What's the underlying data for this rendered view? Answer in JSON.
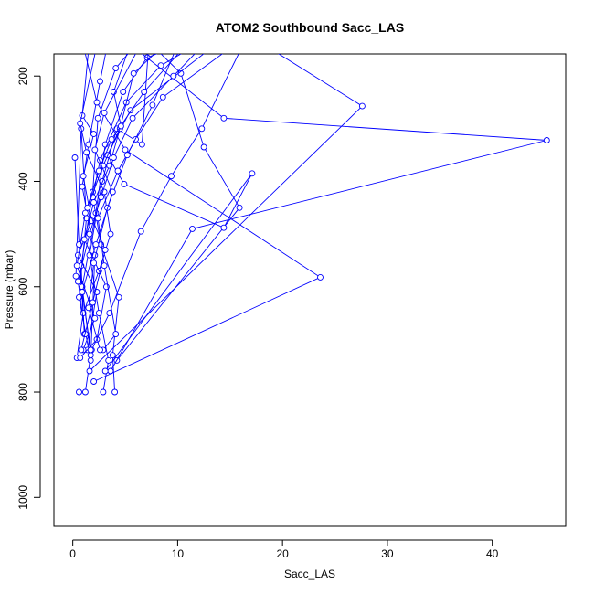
{
  "chart_data": {
    "type": "line",
    "title": "ATOM2 Southbound Sacc_LAS",
    "xlabel": "Sacc_LAS",
    "ylabel": "Pressure (mbar)",
    "xlim": [
      -1.8,
      47.0
    ],
    "ylim": [
      1055,
      158
    ],
    "y_reversed": true,
    "xticks": [
      0,
      10,
      20,
      30,
      40
    ],
    "yticks": [
      200,
      400,
      600,
      800,
      1000
    ],
    "grid": false,
    "legend": "none",
    "colors": {
      "series": "#0000ff",
      "axis": "#000000"
    },
    "series": [
      {
        "values": [
          [
            0.3,
            580
          ],
          [
            0.8,
            300
          ],
          [
            1.3,
            470
          ],
          [
            0.6,
            620
          ],
          [
            1.7,
            740
          ],
          [
            2.1,
            540
          ],
          [
            0.9,
            410
          ],
          [
            1.5,
            330
          ],
          [
            2.6,
            210
          ],
          [
            3.2,
            150
          ]
        ]
      },
      {
        "values": [
          [
            0.2,
            355
          ],
          [
            0.6,
            520
          ],
          [
            1.1,
            690
          ],
          [
            0.8,
            560
          ],
          [
            1.9,
            420
          ],
          [
            2.4,
            280
          ],
          [
            4.1,
            185
          ],
          [
            5.6,
            150
          ]
        ]
      },
      {
        "values": [
          [
            0.6,
            800
          ],
          [
            1.2,
            800
          ],
          [
            1.7,
            730
          ],
          [
            0.9,
            600
          ],
          [
            2.2,
            460
          ],
          [
            3.1,
            330
          ],
          [
            4.8,
            230
          ],
          [
            7.1,
            165
          ],
          [
            9.0,
            150
          ]
        ]
      },
      {
        "values": [
          [
            2.9,
            800
          ],
          [
            3.4,
            740
          ],
          [
            2.5,
            650
          ],
          [
            1.6,
            540
          ],
          [
            2.8,
            400
          ],
          [
            4.2,
            300
          ],
          [
            6.6,
            330
          ],
          [
            7.2,
            150
          ]
        ]
      },
      {
        "values": [
          [
            4.0,
            800
          ],
          [
            3.8,
            730
          ],
          [
            4.4,
            620
          ],
          [
            2.7,
            520
          ],
          [
            1.9,
            430
          ],
          [
            2.6,
            360
          ],
          [
            5.1,
            250
          ],
          [
            8.4,
            180
          ],
          [
            11.0,
            150
          ]
        ]
      },
      {
        "values": [
          [
            4.2,
            740
          ],
          [
            15.9,
            450
          ],
          [
            12.5,
            335
          ],
          [
            10.3,
            195
          ],
          [
            8.0,
            150
          ]
        ]
      },
      {
        "values": [
          [
            3.6,
            760
          ],
          [
            11.4,
            490
          ],
          [
            45.2,
            322
          ],
          [
            14.4,
            280
          ],
          [
            6.1,
            150
          ]
        ]
      },
      {
        "values": [
          [
            3.1,
            760
          ],
          [
            17.1,
            385
          ],
          [
            14.4,
            488
          ],
          [
            4.9,
            405
          ],
          [
            3.3,
            350
          ],
          [
            5.5,
            265
          ],
          [
            13.0,
            150
          ]
        ]
      },
      {
        "values": [
          [
            2.0,
            780
          ],
          [
            23.6,
            582
          ],
          [
            5.0,
            340
          ],
          [
            2.3,
            250
          ],
          [
            1.1,
            150
          ]
        ]
      },
      {
        "values": [
          [
            1.6,
            760
          ],
          [
            27.6,
            257
          ],
          [
            19.0,
            150
          ]
        ]
      },
      {
        "values": [
          [
            1.4,
            720
          ],
          [
            2.3,
            610
          ],
          [
            0.5,
            540
          ],
          [
            1.8,
            475
          ],
          [
            1.0,
            390
          ],
          [
            2.0,
            310
          ],
          [
            0.9,
            275
          ],
          [
            1.5,
            150
          ]
        ]
      },
      {
        "values": [
          [
            0.4,
            735
          ],
          [
            1.0,
            650
          ],
          [
            2.5,
            570
          ],
          [
            3.6,
            500
          ],
          [
            3.0,
            420
          ],
          [
            1.3,
            345
          ],
          [
            0.7,
            290
          ],
          [
            2.2,
            150
          ]
        ]
      },
      {
        "values": [
          [
            0.7,
            735
          ],
          [
            2.3,
            700
          ],
          [
            3.2,
            600
          ],
          [
            1.1,
            510
          ],
          [
            2.0,
            440
          ],
          [
            3.5,
            370
          ],
          [
            4.5,
            300
          ],
          [
            5.8,
            195
          ],
          [
            8.2,
            150
          ]
        ]
      },
      {
        "values": [
          [
            1.2,
            690
          ],
          [
            0.5,
            590
          ],
          [
            1.6,
            500
          ],
          [
            2.7,
            430
          ],
          [
            3.9,
            355
          ],
          [
            5.7,
            280
          ],
          [
            9.6,
            200
          ],
          [
            12.0,
            150
          ]
        ]
      },
      {
        "values": [
          [
            2.9,
            720
          ],
          [
            4.1,
            690
          ],
          [
            3.0,
            560
          ],
          [
            2.4,
            470
          ],
          [
            4.3,
            380
          ],
          [
            6.0,
            320
          ],
          [
            8.6,
            240
          ],
          [
            14.8,
            150
          ]
        ]
      },
      {
        "values": [
          [
            1.8,
            720
          ],
          [
            3.5,
            650
          ],
          [
            6.5,
            495
          ],
          [
            9.4,
            390
          ],
          [
            12.3,
            300
          ],
          [
            16.0,
            150
          ]
        ]
      },
      {
        "values": [
          [
            1.0,
            720
          ],
          [
            2.1,
            660
          ],
          [
            0.4,
            560
          ],
          [
            1.2,
            460
          ],
          [
            2.5,
            380
          ],
          [
            3.7,
            320
          ],
          [
            6.8,
            230
          ],
          [
            10.4,
            150
          ]
        ]
      },
      {
        "values": [
          [
            2.6,
            720
          ],
          [
            1.5,
            640
          ],
          [
            2.0,
            555
          ],
          [
            3.3,
            450
          ],
          [
            5.2,
            350
          ],
          [
            7.6,
            255
          ],
          [
            9.8,
            150
          ]
        ]
      },
      {
        "values": [
          [
            0.8,
            720
          ],
          [
            1.9,
            630
          ],
          [
            3.1,
            530
          ],
          [
            1.4,
            450
          ],
          [
            2.9,
            370
          ],
          [
            4.6,
            295
          ],
          [
            3.9,
            230
          ],
          [
            5.3,
            150
          ]
        ]
      },
      {
        "values": [
          [
            1.7,
            720
          ],
          [
            0.9,
            610
          ],
          [
            2.2,
            520
          ],
          [
            3.8,
            420
          ],
          [
            2.1,
            340
          ],
          [
            3.0,
            270
          ],
          [
            6.2,
            150
          ]
        ]
      }
    ]
  }
}
